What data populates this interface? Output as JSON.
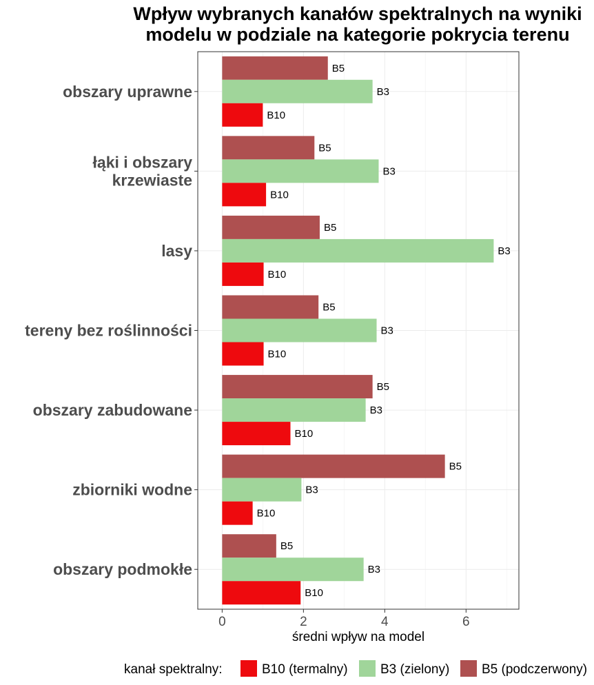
{
  "chart_data": {
    "type": "bar",
    "orientation": "horizontal",
    "title": "Wpływ wybranych kanałów spektralnych na wyniki modelu w podziale na kategorie pokrycia terenu",
    "title_lines": [
      "Wpływ wybranych kanałów spektralnych na wyniki",
      "modelu w podziale na kategorie pokrycia terenu"
    ],
    "xlabel": "średni wpływ na model",
    "ylabel": "",
    "xlim": [
      -0.6,
      7.3
    ],
    "xticks": [
      0,
      2,
      4,
      6
    ],
    "grid": true,
    "legend_position": "bottom",
    "legend_title": "kanał spektralny:",
    "categories": [
      {
        "label": [
          "obszary uprawne"
        ]
      },
      {
        "label": [
          "łąki i obszary",
          "krzewiaste"
        ]
      },
      {
        "label": [
          "lasy"
        ]
      },
      {
        "label": [
          "tereny bez roślinności"
        ]
      },
      {
        "label": [
          "obszary zabudowane"
        ]
      },
      {
        "label": [
          "zbiorniki wodne"
        ]
      },
      {
        "label": [
          "obszary podmokłe"
        ]
      }
    ],
    "series": [
      {
        "name": "B10 (termalny)",
        "label": "B10",
        "color": "#ee0a0e",
        "values": [
          1.0,
          1.08,
          1.02,
          1.02,
          1.68,
          0.75,
          1.93
        ]
      },
      {
        "name": "B3 (zielony)",
        "label": "B3",
        "color": "#a0d59a",
        "values": [
          3.7,
          3.85,
          6.68,
          3.8,
          3.53,
          1.95,
          3.48
        ]
      },
      {
        "name": "B5 (podczerwony)",
        "label": "B5",
        "color": "#ae5050",
        "values": [
          2.6,
          2.27,
          2.4,
          2.37,
          3.7,
          5.48,
          1.33
        ]
      }
    ]
  }
}
